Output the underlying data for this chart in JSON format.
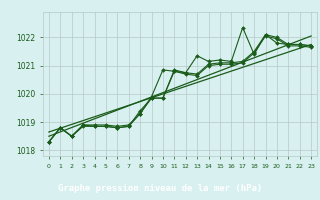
{
  "title": "Graphe pression niveau de la mer (hPa)",
  "background_color": "#d8f0f0",
  "plot_bg_color": "#d8f0f0",
  "grid_color": "#b8c8c8",
  "line_color": "#1a5c1a",
  "marker_color": "#1a5c1a",
  "xlabel_bg": "#2a6a2a",
  "xlabel_fg": "#ffffff",
  "xlim": [
    -0.5,
    23.5
  ],
  "ylim": [
    1017.8,
    1022.9
  ],
  "yticks": [
    1018,
    1019,
    1020,
    1021,
    1022
  ],
  "xticks": [
    0,
    1,
    2,
    3,
    4,
    5,
    6,
    7,
    8,
    9,
    10,
    11,
    12,
    13,
    14,
    15,
    16,
    17,
    18,
    19,
    20,
    21,
    22,
    23
  ],
  "series1": [
    1018.3,
    1018.8,
    1018.5,
    1018.9,
    1018.9,
    1018.9,
    1018.85,
    1018.9,
    1019.3,
    1019.9,
    1020.85,
    1020.8,
    1020.75,
    1021.35,
    1021.15,
    1021.2,
    1021.15,
    1022.35,
    1021.4,
    1022.1,
    1021.8,
    1021.75,
    1021.75,
    1021.7
  ],
  "series2": [
    1018.3,
    1018.8,
    1018.5,
    1018.9,
    1018.85,
    1018.85,
    1018.8,
    1018.85,
    1019.4,
    1019.85,
    1019.85,
    1020.85,
    1020.75,
    1020.7,
    1021.05,
    1021.1,
    1021.1,
    1021.15,
    1021.5,
    1022.1,
    1022.0,
    1021.75,
    1021.75,
    1021.7
  ],
  "series3": [
    1018.3,
    1018.8,
    1018.5,
    1018.85,
    1018.85,
    1018.85,
    1018.8,
    1018.85,
    1019.3,
    1019.85,
    1019.85,
    1020.8,
    1020.7,
    1020.65,
    1021.0,
    1021.05,
    1021.05,
    1021.1,
    1021.45,
    1022.05,
    1021.95,
    1021.7,
    1021.7,
    1021.65
  ],
  "trend1_x": [
    0,
    23
  ],
  "trend1_y": [
    1018.65,
    1021.75
  ],
  "trend2_x": [
    0,
    23
  ],
  "trend2_y": [
    1018.5,
    1022.05
  ]
}
